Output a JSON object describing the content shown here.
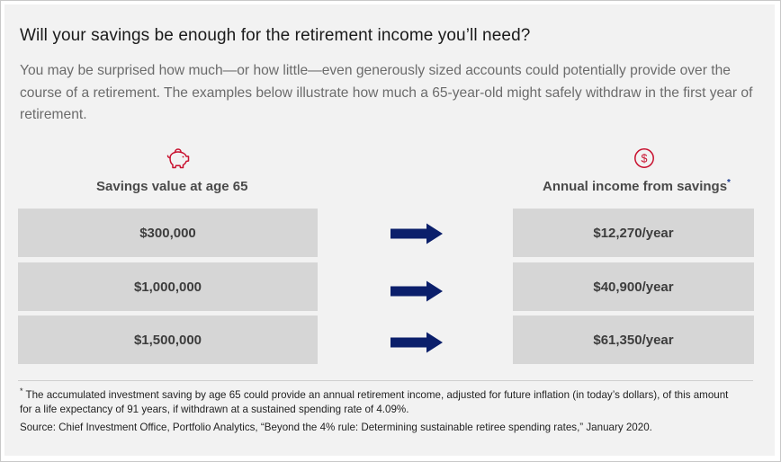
{
  "title": "Will your savings be enough for the retirement income you’ll need?",
  "intro": "You may be surprised how much—or how little—even generously sized accounts could potentially provide over the course of a retirement. The examples below illustrate how much a 65-year-old might safely withdraw in the first year of retirement.",
  "left_column": {
    "icon": "piggy-bank-icon",
    "label": "Savings value at age 65"
  },
  "right_column": {
    "icon": "dollar-circle-icon",
    "label": "Annual income from savings",
    "marker": "*"
  },
  "rows": [
    {
      "savings": "$300,000",
      "income": "$12,270/year"
    },
    {
      "savings": "$1,000,000",
      "income": "$40,900/year"
    },
    {
      "savings": "$1,500,000",
      "income": "$61,350/year"
    }
  ],
  "footnote": {
    "marker": "*",
    "text": "The accumulated investment saving by age 65 could provide an annual retirement income, adjusted for future inflation (in today’s dollars), of this amount for a life expectancy of 91 years, if withdrawn at a sustained spending rate of 4.09%."
  },
  "source": "Source: Chief Investment Office, Portfolio Analytics, “Beyond the 4% rule: Determining sustainable retiree spending rates,” January 2020.",
  "colors": {
    "accent_red": "#c8102e",
    "arrow_navy": "#0b1f6b",
    "box_gray": "#d6d6d6",
    "panel_bg": "#f2f2f2"
  }
}
